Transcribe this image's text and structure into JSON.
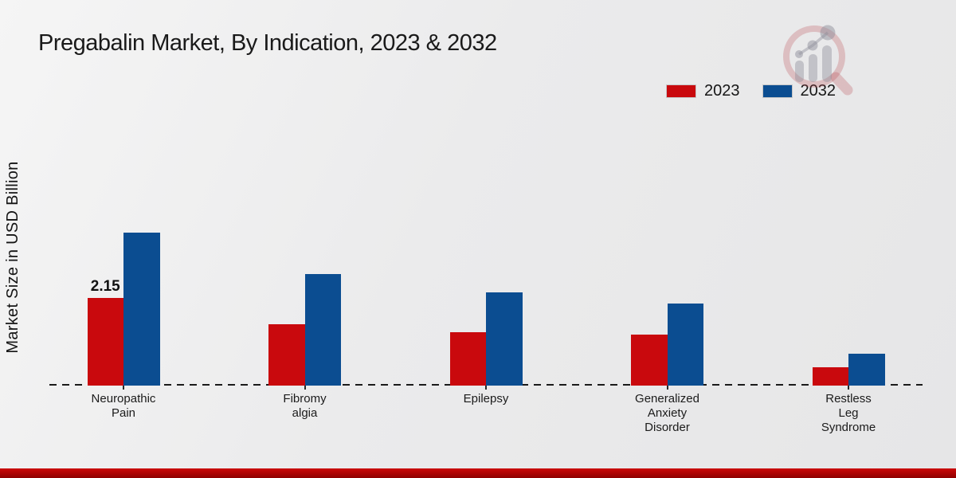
{
  "chart_data": {
    "type": "bar",
    "title": "Pregabalin Market, By Indication, 2023 & 2032",
    "ylabel": "Market Size in USD Billion",
    "xlabel": "",
    "ylim": [
      0,
      4.5
    ],
    "grid": false,
    "legend_position": "top-right",
    "baseline_style": "dashed",
    "categories": [
      "Neuropathic Pain",
      "Fibromyalgia",
      "Epilepsy",
      "Generalized Anxiety Disorder",
      "Restless Leg Syndrome"
    ],
    "category_label_lines": [
      [
        "Neuropathic",
        "Pain"
      ],
      [
        "Fibromy",
        "algia"
      ],
      [
        "Epilepsy"
      ],
      [
        "Generalized",
        "Anxiety",
        "Disorder"
      ],
      [
        "Restless",
        "Leg",
        "Syndrome"
      ]
    ],
    "series": [
      {
        "name": "2023",
        "color": "#c9090d",
        "values": [
          2.15,
          1.5,
          1.31,
          1.25,
          0.44
        ]
      },
      {
        "name": "2032",
        "color": "#0b4d91",
        "values": [
          3.75,
          2.73,
          2.28,
          2.02,
          0.78
        ]
      }
    ],
    "data_labels": [
      {
        "series": "2023",
        "category": "Neuropathic Pain",
        "category_index": 0,
        "text": "2.15"
      }
    ]
  },
  "footer": {
    "accent_bar_color_top": "#cb0707",
    "accent_bar_color_bottom": "#8e0000"
  },
  "watermark": {
    "icon": "magnifier-barchart-logo",
    "ring_color": "rgba(186,78,86,0.28)",
    "bars_color": "rgba(140,140,152,0.42)"
  }
}
